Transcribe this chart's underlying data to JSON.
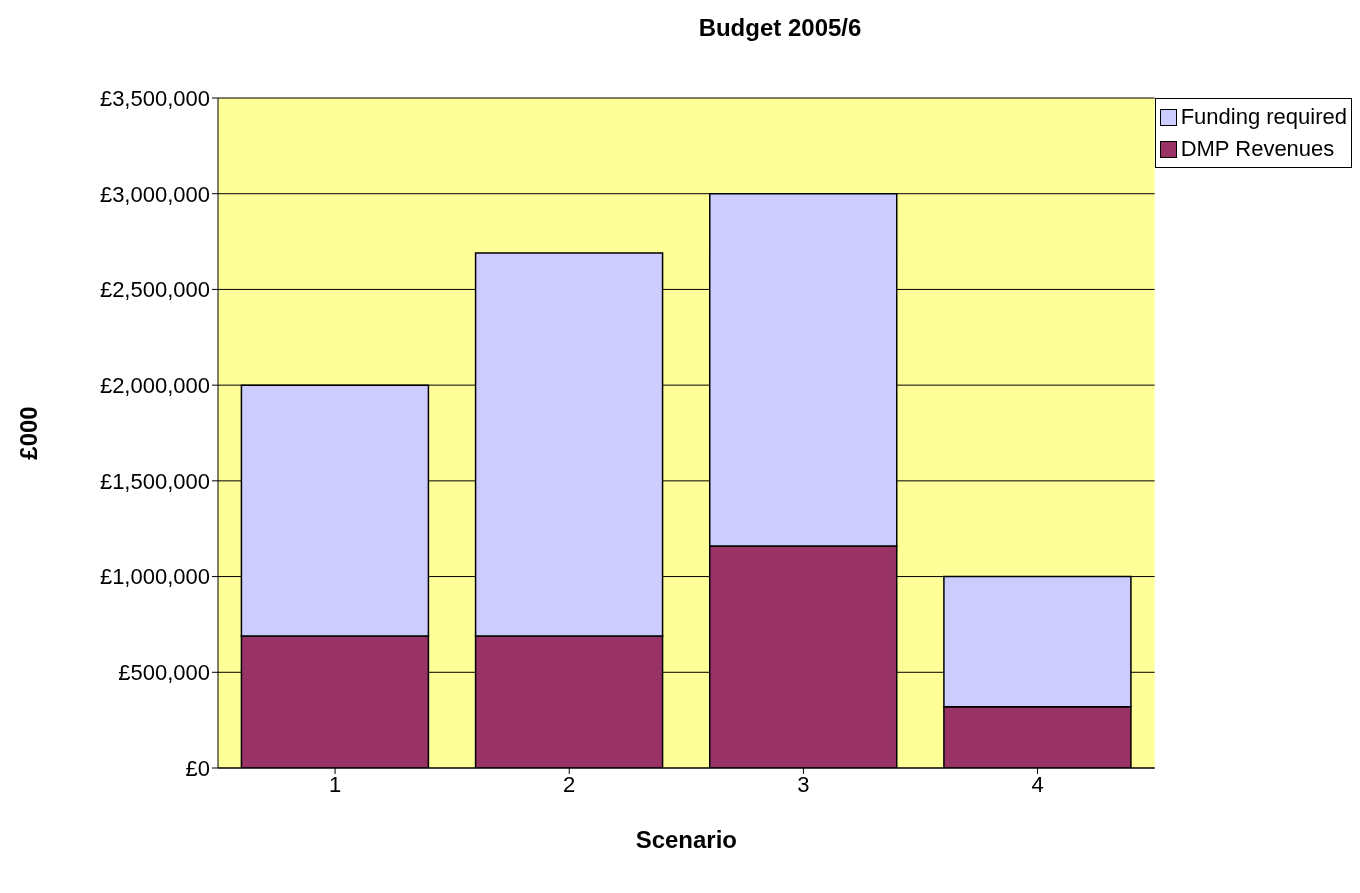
{
  "chart_data": {
    "type": "bar",
    "title": "Budget 2005/6",
    "xlabel": "Scenario",
    "ylabel": "£000",
    "categories": [
      "1",
      "2",
      "3",
      "4"
    ],
    "stacked": true,
    "series": [
      {
        "name": "DMP Revenues",
        "color": "#993366",
        "values": [
          690000,
          690000,
          1160000,
          320000
        ]
      },
      {
        "name": "Funding required",
        "color": "#ccccff",
        "values": [
          1310000,
          2000000,
          1840000,
          680000
        ]
      }
    ],
    "ylim": [
      0,
      3500000
    ],
    "yticks": [
      {
        "value": 0,
        "label": "£0"
      },
      {
        "value": 500000,
        "label": "£500,000"
      },
      {
        "value": 1000000,
        "label": "£1,000,000"
      },
      {
        "value": 1500000,
        "label": "£1,500,000"
      },
      {
        "value": 2000000,
        "label": "£2,000,000"
      },
      {
        "value": 2500000,
        "label": "£2,500,000"
      },
      {
        "value": 3000000,
        "label": "£3,000,000"
      },
      {
        "value": 3500000,
        "label": "£3,500,000"
      }
    ],
    "grid": "y",
    "legend": "top right"
  }
}
